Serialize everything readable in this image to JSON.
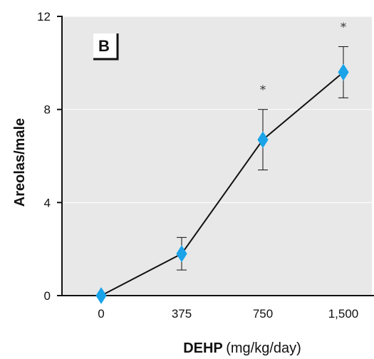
{
  "chart_data": {
    "type": "line",
    "panel_label": "B",
    "ylabel": "Areolas/male",
    "xlabel_bold": "DEHP",
    "xlabel_unit": "(mg/kg/day)",
    "categories": [
      "0",
      "375",
      "750",
      "1,500"
    ],
    "y_ticks": [
      "0",
      "4",
      "8",
      "12"
    ],
    "ylim": [
      0,
      12
    ],
    "grid": true,
    "series": [
      {
        "values": [
          0,
          1.8,
          6.7,
          9.6
        ],
        "error": [
          0,
          0.7,
          1.3,
          1.1
        ],
        "significant": [
          "",
          "",
          "*",
          "*"
        ],
        "color": "#1aa3e8",
        "line_color": "#111111"
      }
    ],
    "background": "#e8e8e8"
  }
}
